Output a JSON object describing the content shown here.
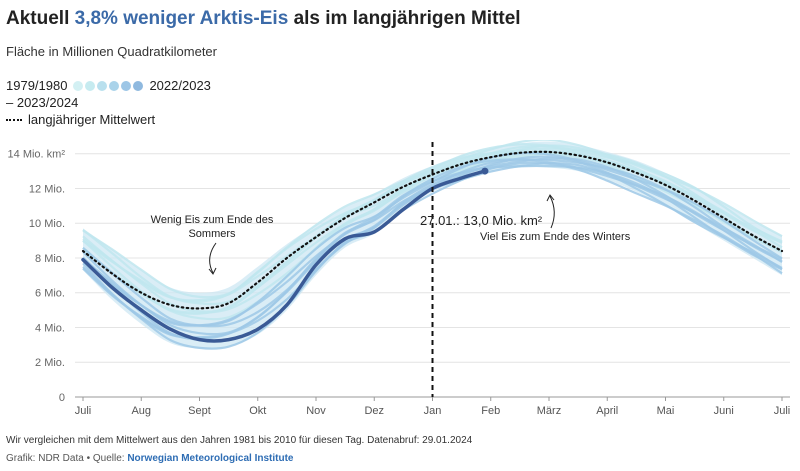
{
  "title_pre": "Aktuell ",
  "title_highlight": "3,8% weniger Arktis-Eis",
  "title_post": " als im langjährigen Mittel",
  "subtitle": "Fläche in Millionen Quadratkilometer",
  "legend": {
    "start_label": "1979/1980",
    "end_label": "2022/2023",
    "current_label": "– 2023/2024",
    "mean_label": "langjähriger Mittelwert"
  },
  "colors": {
    "highlight": "#3b6aa8",
    "current": "#3a5a96",
    "early": "#c6ecf1",
    "late": "#8fb9df"
  },
  "chart_data": {
    "type": "line",
    "title": "Aktuell 3,8% weniger Arktis-Eis als im langjährigen Mittel",
    "ylabel": "Fläche in Millionen Quadratkilometer",
    "ylim": [
      0,
      14.5
    ],
    "yticks": [
      {
        "value": 0,
        "label": "0"
      },
      {
        "value": 2,
        "label": "2 Mio."
      },
      {
        "value": 4,
        "label": "4 Mio."
      },
      {
        "value": 6,
        "label": "6 Mio."
      },
      {
        "value": 8,
        "label": "8 Mio."
      },
      {
        "value": 10,
        "label": "10 Mio."
      },
      {
        "value": 12,
        "label": "12 Mio."
      },
      {
        "value": 14,
        "label": "14 Mio. km²"
      }
    ],
    "xlim": [
      0,
      12
    ],
    "months": [
      "Juli",
      "Aug",
      "Sept",
      "Okt",
      "Nov",
      "Dez",
      "Jan",
      "Feb",
      "März",
      "April",
      "Mai",
      "Juni",
      "Juli"
    ],
    "mean": {
      "name": "langjähriger Mittelwert",
      "x": [
        0,
        0.5,
        1,
        1.5,
        2,
        2.5,
        3,
        3.5,
        4,
        4.5,
        5,
        5.5,
        6,
        6.5,
        7,
        7.5,
        8,
        8.5,
        9,
        9.5,
        10,
        10.5,
        11,
        11.5,
        12
      ],
      "y": [
        8.4,
        7.1,
        6.0,
        5.3,
        5.1,
        5.4,
        6.6,
        8.0,
        9.2,
        10.3,
        11.2,
        12.1,
        12.8,
        13.4,
        13.8,
        14.05,
        14.1,
        13.9,
        13.5,
        12.9,
        12.2,
        11.3,
        10.3,
        9.3,
        8.4
      ]
    },
    "current": {
      "name": "2023/2024",
      "x": [
        0,
        0.5,
        1,
        1.5,
        2,
        2.5,
        3,
        3.5,
        4,
        4.5,
        5,
        5.5,
        6,
        6.5,
        6.9
      ],
      "y": [
        7.9,
        6.3,
        5.0,
        3.9,
        3.3,
        3.3,
        3.9,
        5.3,
        7.6,
        9.1,
        9.5,
        10.8,
        12.0,
        12.6,
        13.0
      ]
    },
    "range_low": [
      7.3,
      5.6,
      4.2,
      3.1,
      2.8,
      2.9,
      3.6,
      5.0,
      7.0,
      8.6,
      9.4,
      10.8,
      11.8,
      12.5,
      13.0,
      13.2,
      13.2,
      13.0,
      12.5,
      11.8,
      11.0,
      10.0,
      9.0,
      8.0,
      7.0
    ],
    "range_high": [
      9.7,
      8.5,
      7.3,
      6.3,
      6.0,
      6.3,
      7.5,
      8.8,
      9.9,
      10.9,
      11.7,
      12.6,
      13.3,
      13.9,
      14.3,
      14.6,
      14.7,
      14.5,
      14.1,
      13.6,
      12.9,
      12.1,
      11.1,
      10.1,
      9.3
    ],
    "annotations": {
      "january_marker": {
        "x": 6.0
      },
      "current_value": "27.01.: 13,0 Mio. km²",
      "summer_note": "Wenig Eis zum Ende des Sommers",
      "summer_line1": "Wenig Eis zum Ende des",
      "summer_line2": "Sommers",
      "winter_note": "Viel Eis zum Ende des Winters"
    }
  },
  "footnote": "Wir vergleichen mit dem Mittelwert aus den Jahren 1981 bis 2010 für diesen Tag. Datenabruf: 29.01.2024",
  "source_prefix": "Grafik: NDR Data • Quelle: ",
  "source_link": "Norwegian Meteorological Institute"
}
